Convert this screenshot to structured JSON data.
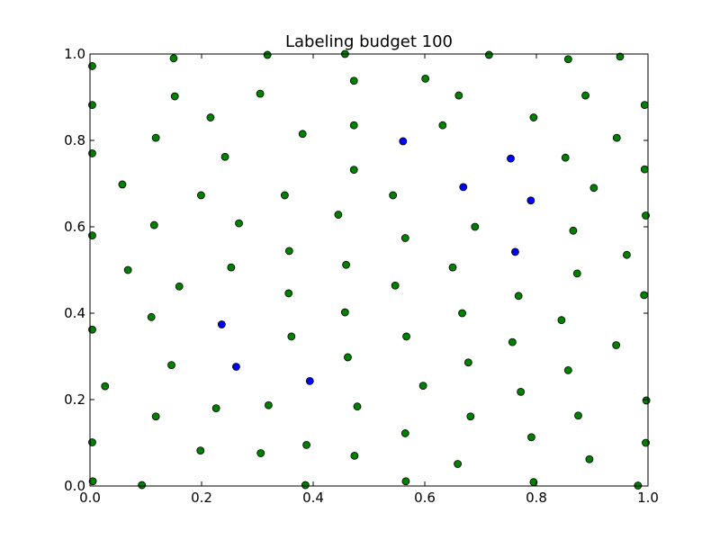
{
  "chart_data": {
    "type": "scatter",
    "title": "Labeling budget 100",
    "xlabel": "",
    "ylabel": "",
    "xlim": [
      0.0,
      1.0
    ],
    "ylim": [
      0.0,
      1.0
    ],
    "grid": false,
    "xticks": [
      "0.0",
      "0.2",
      "0.4",
      "0.6",
      "0.8",
      "1.0"
    ],
    "yticks": [
      "0.0",
      "0.2",
      "0.4",
      "0.6",
      "0.8",
      "1.0"
    ],
    "series": [
      {
        "color": "#008000",
        "points": [
          [
            0.004,
            0.972
          ],
          [
            0.15,
            0.99
          ],
          [
            0.318,
            0.998
          ],
          [
            0.457,
            1.0
          ],
          [
            0.715,
            0.998
          ],
          [
            0.857,
            0.988
          ],
          [
            0.95,
            0.994
          ],
          [
            0.004,
            0.882
          ],
          [
            0.152,
            0.902
          ],
          [
            0.305,
            0.908
          ],
          [
            0.473,
            0.938
          ],
          [
            0.601,
            0.943
          ],
          [
            0.661,
            0.904
          ],
          [
            0.888,
            0.904
          ],
          [
            0.994,
            0.882
          ],
          [
            0.216,
            0.853
          ],
          [
            0.381,
            0.815
          ],
          [
            0.473,
            0.835
          ],
          [
            0.632,
            0.835
          ],
          [
            0.795,
            0.853
          ],
          [
            0.944,
            0.806
          ],
          [
            0.004,
            0.77
          ],
          [
            0.118,
            0.806
          ],
          [
            0.242,
            0.762
          ],
          [
            0.473,
            0.732
          ],
          [
            0.852,
            0.76
          ],
          [
            0.994,
            0.733
          ],
          [
            0.058,
            0.698
          ],
          [
            0.199,
            0.673
          ],
          [
            0.349,
            0.673
          ],
          [
            0.543,
            0.673
          ],
          [
            0.903,
            0.69
          ],
          [
            0.004,
            0.58
          ],
          [
            0.115,
            0.604
          ],
          [
            0.267,
            0.608
          ],
          [
            0.445,
            0.628
          ],
          [
            0.565,
            0.574
          ],
          [
            0.69,
            0.6
          ],
          [
            0.866,
            0.591
          ],
          [
            0.996,
            0.626
          ],
          [
            0.068,
            0.5
          ],
          [
            0.253,
            0.506
          ],
          [
            0.357,
            0.544
          ],
          [
            0.459,
            0.512
          ],
          [
            0.65,
            0.506
          ],
          [
            0.962,
            0.535
          ],
          [
            0.16,
            0.462
          ],
          [
            0.356,
            0.446
          ],
          [
            0.547,
            0.464
          ],
          [
            0.768,
            0.44
          ],
          [
            0.873,
            0.492
          ],
          [
            0.993,
            0.442
          ],
          [
            0.004,
            0.362
          ],
          [
            0.11,
            0.391
          ],
          [
            0.361,
            0.346
          ],
          [
            0.457,
            0.402
          ],
          [
            0.567,
            0.346
          ],
          [
            0.667,
            0.4
          ],
          [
            0.757,
            0.333
          ],
          [
            0.845,
            0.384
          ],
          [
            0.943,
            0.326
          ],
          [
            0.146,
            0.28
          ],
          [
            0.027,
            0.231
          ],
          [
            0.462,
            0.298
          ],
          [
            0.597,
            0.232
          ],
          [
            0.678,
            0.286
          ],
          [
            0.857,
            0.268
          ],
          [
            0.772,
            0.218
          ],
          [
            0.118,
            0.161
          ],
          [
            0.226,
            0.18
          ],
          [
            0.32,
            0.187
          ],
          [
            0.479,
            0.184
          ],
          [
            0.682,
            0.161
          ],
          [
            0.875,
            0.163
          ],
          [
            0.997,
            0.198
          ],
          [
            0.004,
            0.101
          ],
          [
            0.198,
            0.082
          ],
          [
            0.306,
            0.076
          ],
          [
            0.388,
            0.095
          ],
          [
            0.474,
            0.07
          ],
          [
            0.565,
            0.122
          ],
          [
            0.659,
            0.051
          ],
          [
            0.791,
            0.113
          ],
          [
            0.895,
            0.062
          ],
          [
            0.996,
            0.1
          ],
          [
            0.005,
            0.011
          ],
          [
            0.093,
            0.002
          ],
          [
            0.386,
            0.002
          ],
          [
            0.566,
            0.011
          ],
          [
            0.795,
            0.009
          ],
          [
            0.982,
            0.001
          ]
        ]
      },
      {
        "color": "#0000ff",
        "points": [
          [
            0.561,
            0.798
          ],
          [
            0.754,
            0.758
          ],
          [
            0.669,
            0.692
          ],
          [
            0.79,
            0.661
          ],
          [
            0.762,
            0.542
          ],
          [
            0.236,
            0.374
          ],
          [
            0.262,
            0.276
          ],
          [
            0.394,
            0.243
          ]
        ]
      }
    ]
  }
}
